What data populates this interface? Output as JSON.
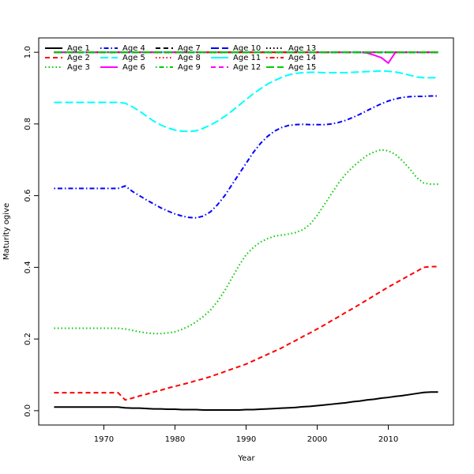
{
  "chart_data": {
    "type": "line",
    "xlabel": "Year",
    "ylabel": "Maturity ogive",
    "x": [
      1963,
      1964,
      1965,
      1966,
      1967,
      1968,
      1969,
      1970,
      1971,
      1972,
      1973,
      1974,
      1975,
      1976,
      1977,
      1978,
      1979,
      1980,
      1981,
      1982,
      1983,
      1984,
      1985,
      1986,
      1987,
      1988,
      1989,
      1990,
      1991,
      1992,
      1993,
      1994,
      1995,
      1996,
      1997,
      1998,
      1999,
      2000,
      2001,
      2002,
      2003,
      2004,
      2005,
      2006,
      2007,
      2008,
      2009,
      2010,
      2011,
      2012,
      2013,
      2014,
      2015,
      2016,
      2017
    ],
    "xlim": [
      1960.84,
      2019.16
    ],
    "xticks": [
      1970,
      1980,
      1990,
      2000,
      2010
    ],
    "ylim": [
      -0.04,
      1.04
    ],
    "yticks": [
      {
        "value": 0,
        "label": "0.0"
      },
      0.2,
      0.4,
      0.6,
      0.8,
      {
        "value": 1,
        "label": "1.0"
      }
    ],
    "legend_position": "topleft",
    "legend_columns": 5,
    "series": [
      {
        "name": "Age 1",
        "color": "#000000",
        "line_style": "solid",
        "values": [
          0.01,
          0.01,
          0.01,
          0.01,
          0.01,
          0.01,
          0.01,
          0.01,
          0.01,
          0.01,
          0.008,
          0.007,
          0.007,
          0.006,
          0.005,
          0.005,
          0.004,
          0.004,
          0.003,
          0.003,
          0.003,
          0.002,
          0.002,
          0.002,
          0.002,
          0.002,
          0.002,
          0.003,
          0.003,
          0.004,
          0.005,
          0.006,
          0.007,
          0.008,
          0.009,
          0.011,
          0.012,
          0.014,
          0.016,
          0.018,
          0.02,
          0.022,
          0.025,
          0.027,
          0.03,
          0.032,
          0.035,
          0.037,
          0.04,
          0.042,
          0.045,
          0.048,
          0.051,
          0.052,
          0.052
        ]
      },
      {
        "name": "Age 2",
        "color": "#ff0000",
        "line_style": "dashed",
        "values": [
          0.05,
          0.05,
          0.05,
          0.05,
          0.05,
          0.05,
          0.05,
          0.05,
          0.05,
          0.05,
          0.03,
          0.035,
          0.041,
          0.046,
          0.052,
          0.057,
          0.063,
          0.068,
          0.073,
          0.078,
          0.084,
          0.089,
          0.095,
          0.102,
          0.109,
          0.116,
          0.123,
          0.13,
          0.139,
          0.148,
          0.157,
          0.166,
          0.175,
          0.186,
          0.196,
          0.207,
          0.217,
          0.228,
          0.239,
          0.251,
          0.262,
          0.274,
          0.285,
          0.297,
          0.309,
          0.321,
          0.333,
          0.345,
          0.356,
          0.367,
          0.378,
          0.389,
          0.4,
          0.402,
          0.402
        ]
      },
      {
        "name": "Age 3",
        "color": "#00cd00",
        "line_style": "dotted",
        "values": [
          0.23,
          0.23,
          0.23,
          0.23,
          0.23,
          0.23,
          0.23,
          0.23,
          0.23,
          0.23,
          0.228,
          0.224,
          0.22,
          0.217,
          0.215,
          0.215,
          0.217,
          0.22,
          0.227,
          0.236,
          0.248,
          0.263,
          0.281,
          0.305,
          0.335,
          0.37,
          0.405,
          0.435,
          0.455,
          0.47,
          0.48,
          0.487,
          0.49,
          0.493,
          0.497,
          0.505,
          0.52,
          0.545,
          0.575,
          0.605,
          0.635,
          0.66,
          0.68,
          0.697,
          0.712,
          0.722,
          0.728,
          0.725,
          0.715,
          0.697,
          0.675,
          0.65,
          0.635,
          0.632,
          0.632
        ]
      },
      {
        "name": "Age 4",
        "color": "#0000ff",
        "line_style": "dotdash",
        "values": [
          0.62,
          0.62,
          0.62,
          0.62,
          0.62,
          0.62,
          0.62,
          0.62,
          0.62,
          0.62,
          0.627,
          0.612,
          0.6,
          0.588,
          0.577,
          0.566,
          0.557,
          0.549,
          0.543,
          0.539,
          0.538,
          0.543,
          0.555,
          0.575,
          0.6,
          0.63,
          0.66,
          0.69,
          0.72,
          0.745,
          0.765,
          0.78,
          0.79,
          0.796,
          0.798,
          0.799,
          0.798,
          0.798,
          0.798,
          0.8,
          0.804,
          0.81,
          0.818,
          0.827,
          0.837,
          0.847,
          0.856,
          0.864,
          0.87,
          0.874,
          0.876,
          0.877,
          0.877,
          0.878,
          0.878
        ]
      },
      {
        "name": "Age 5",
        "color": "#00ffff",
        "line_style": "longdash",
        "values": [
          0.86,
          0.86,
          0.86,
          0.86,
          0.86,
          0.86,
          0.86,
          0.86,
          0.86,
          0.86,
          0.858,
          0.848,
          0.836,
          0.822,
          0.808,
          0.797,
          0.789,
          0.783,
          0.78,
          0.779,
          0.781,
          0.788,
          0.797,
          0.808,
          0.821,
          0.836,
          0.852,
          0.868,
          0.884,
          0.898,
          0.911,
          0.921,
          0.93,
          0.937,
          0.941,
          0.943,
          0.944,
          0.944,
          0.943,
          0.943,
          0.943,
          0.943,
          0.944,
          0.945,
          0.946,
          0.947,
          0.948,
          0.947,
          0.945,
          0.941,
          0.936,
          0.931,
          0.929,
          0.929,
          0.929
        ]
      },
      {
        "name": "Age 6",
        "color": "#ff00ff",
        "line_style": "solid",
        "values": [
          1,
          1,
          1,
          1,
          1,
          1,
          1,
          1,
          1,
          1,
          1,
          1,
          1,
          1,
          1,
          1,
          1,
          1,
          1,
          1,
          1,
          1,
          1,
          1,
          1,
          1,
          1,
          1,
          1,
          1,
          1,
          1,
          1,
          1,
          1,
          1,
          1,
          1,
          1,
          1,
          1,
          1,
          1,
          1,
          0.998,
          0.992,
          0.985,
          0.97,
          1,
          1,
          1,
          1,
          1,
          1,
          1
        ]
      },
      {
        "name": "Age 7",
        "color": "#000000",
        "line_style": "dashed",
        "values": [
          1,
          1,
          1,
          1,
          1,
          1,
          1,
          1,
          1,
          1,
          1,
          1,
          1,
          1,
          1,
          1,
          1,
          1,
          1,
          1,
          1,
          1,
          1,
          1,
          1,
          1,
          1,
          1,
          1,
          1,
          1,
          1,
          1,
          1,
          1,
          1,
          1,
          1,
          1,
          1,
          1,
          1,
          1,
          1,
          1,
          1,
          1,
          1,
          1,
          1,
          1,
          1,
          1,
          1,
          1
        ]
      },
      {
        "name": "Age 8",
        "color": "#ff0000",
        "line_style": "dotted",
        "values": [
          1,
          1,
          1,
          1,
          1,
          1,
          1,
          1,
          1,
          1,
          1,
          1,
          1,
          1,
          1,
          1,
          1,
          1,
          1,
          1,
          1,
          1,
          1,
          1,
          1,
          1,
          1,
          1,
          1,
          1,
          1,
          1,
          1,
          1,
          1,
          1,
          1,
          1,
          1,
          1,
          1,
          1,
          1,
          1,
          1,
          1,
          1,
          1,
          1,
          1,
          1,
          1,
          1,
          1,
          1
        ]
      },
      {
        "name": "Age 9",
        "color": "#00cd00",
        "line_style": "dotdash",
        "values": [
          1,
          1,
          1,
          1,
          1,
          1,
          1,
          1,
          1,
          1,
          1,
          1,
          1,
          1,
          1,
          1,
          1,
          1,
          1,
          1,
          1,
          1,
          1,
          1,
          1,
          1,
          1,
          1,
          1,
          1,
          1,
          1,
          1,
          1,
          1,
          1,
          1,
          1,
          1,
          1,
          1,
          1,
          1,
          1,
          1,
          1,
          1,
          1,
          1,
          1,
          1,
          1,
          1,
          1,
          1
        ]
      },
      {
        "name": "Age 10",
        "color": "#0000ff",
        "line_style": "longdash",
        "values": [
          1,
          1,
          1,
          1,
          1,
          1,
          1,
          1,
          1,
          1,
          1,
          1,
          1,
          1,
          1,
          1,
          1,
          1,
          1,
          1,
          1,
          1,
          1,
          1,
          1,
          1,
          1,
          1,
          1,
          1,
          1,
          1,
          1,
          1,
          1,
          1,
          1,
          1,
          1,
          1,
          1,
          1,
          1,
          1,
          1,
          1,
          1,
          1,
          1,
          1,
          1,
          1,
          1,
          1,
          1
        ]
      },
      {
        "name": "Age 11",
        "color": "#00ffff",
        "line_style": "solid",
        "values": [
          1,
          1,
          1,
          1,
          1,
          1,
          1,
          1,
          1,
          1,
          1,
          1,
          1,
          1,
          1,
          1,
          1,
          1,
          1,
          1,
          1,
          1,
          1,
          1,
          1,
          1,
          1,
          1,
          1,
          1,
          1,
          1,
          1,
          1,
          1,
          1,
          1,
          1,
          1,
          1,
          1,
          1,
          1,
          1,
          1,
          1,
          1,
          1,
          1,
          1,
          1,
          1,
          1,
          1,
          1
        ]
      },
      {
        "name": "Age 12",
        "color": "#ff00ff",
        "line_style": "dashed",
        "values": [
          1,
          1,
          1,
          1,
          1,
          1,
          1,
          1,
          1,
          1,
          1,
          1,
          1,
          1,
          1,
          1,
          1,
          1,
          1,
          1,
          1,
          1,
          1,
          1,
          1,
          1,
          1,
          1,
          1,
          1,
          1,
          1,
          1,
          1,
          1,
          1,
          1,
          1,
          1,
          1,
          1,
          1,
          1,
          1,
          1,
          1,
          1,
          1,
          1,
          1,
          1,
          1,
          1,
          1,
          1
        ]
      },
      {
        "name": "Age 13",
        "color": "#000000",
        "line_style": "dotted",
        "values": [
          1,
          1,
          1,
          1,
          1,
          1,
          1,
          1,
          1,
          1,
          1,
          1,
          1,
          1,
          1,
          1,
          1,
          1,
          1,
          1,
          1,
          1,
          1,
          1,
          1,
          1,
          1,
          1,
          1,
          1,
          1,
          1,
          1,
          1,
          1,
          1,
          1,
          1,
          1,
          1,
          1,
          1,
          1,
          1,
          1,
          1,
          1,
          1,
          1,
          1,
          1,
          1,
          1,
          1,
          1
        ]
      },
      {
        "name": "Age 14",
        "color": "#ff0000",
        "line_style": "dotdash",
        "values": [
          1,
          1,
          1,
          1,
          1,
          1,
          1,
          1,
          1,
          1,
          1,
          1,
          1,
          1,
          1,
          1,
          1,
          1,
          1,
          1,
          1,
          1,
          1,
          1,
          1,
          1,
          1,
          1,
          1,
          1,
          1,
          1,
          1,
          1,
          1,
          1,
          1,
          1,
          1,
          1,
          1,
          1,
          1,
          1,
          1,
          1,
          1,
          1,
          1,
          1,
          1,
          1,
          1,
          1,
          1
        ]
      },
      {
        "name": "Age 15",
        "color": "#00cd00",
        "line_style": "longdash",
        "values": [
          1,
          1,
          1,
          1,
          1,
          1,
          1,
          1,
          1,
          1,
          1,
          1,
          1,
          1,
          1,
          1,
          1,
          1,
          1,
          1,
          1,
          1,
          1,
          1,
          1,
          1,
          1,
          1,
          1,
          1,
          1,
          1,
          1,
          1,
          1,
          1,
          1,
          1,
          1,
          1,
          1,
          1,
          1,
          1,
          1,
          1,
          1,
          1,
          1,
          1,
          1,
          1,
          1,
          1,
          1
        ]
      }
    ]
  }
}
